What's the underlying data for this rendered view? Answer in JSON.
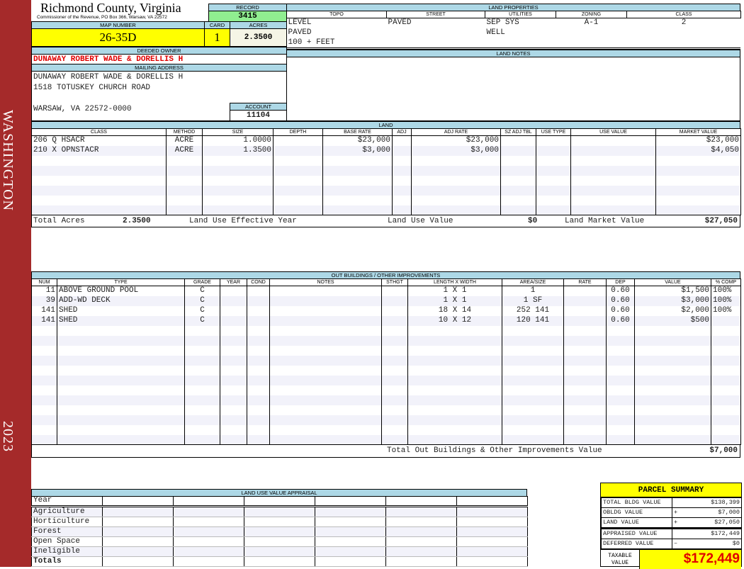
{
  "sidebar": {
    "district": "WASHINGTON",
    "year": "2023"
  },
  "header": {
    "title": "Richmond County, Virginia",
    "subtitle": "Commissioner of the Revenue, PO Box 366, Warsaw, VA 22572",
    "record_label": "RECORD",
    "record": "3415",
    "map_label": "MAP NUMBER",
    "map_number": "26-35D",
    "card_label": "CARD",
    "card": "1",
    "acres_label": "ACRES",
    "acres": "2.3500"
  },
  "owner": {
    "label": "DEEDED OWNER",
    "name": "DUNAWAY ROBERT WADE & DORELLIS H",
    "mail_label": "MAILING ADDRESS",
    "line1": "DUNAWAY ROBERT WADE & DORELLIS H",
    "line2": "1518 TOTUSKEY CHURCH ROAD",
    "line3": "WARSAW, VA 22572-0000",
    "account_label": "ACCOUNT",
    "account": "11104"
  },
  "land_properties": {
    "title": "LAND PROPERTIES",
    "columns": [
      "TOPO",
      "STREET",
      "UTILITIES",
      "ZONING",
      "CLASS"
    ],
    "topo": [
      "LEVEL",
      "PAVED",
      "100 + FEET"
    ],
    "street": [
      "PAVED"
    ],
    "utilities": [
      "SEP SYS",
      "WELL"
    ],
    "zoning": [
      "A-1"
    ],
    "class": [
      "2"
    ]
  },
  "land_notes": {
    "title": "LAND NOTES"
  },
  "land": {
    "title": "LAND",
    "columns": [
      "CLASS",
      "METHOD",
      "SIZE",
      "DEPTH",
      "BASE RATE",
      "ADJ",
      "ADJ RATE",
      "SZ ADJ TBL",
      "USE TYPE",
      "USE VALUE",
      "MARKET VALUE"
    ],
    "rows": [
      [
        "206 Q HSACR",
        "ACRE",
        "1.0000",
        "",
        "$23,000",
        "",
        "$23,000",
        "",
        "",
        "",
        "$23,000"
      ],
      [
        "210 X OPNSTACR",
        "ACRE",
        "1.3500",
        "",
        "$3,000",
        "",
        "$3,000",
        "",
        "",
        "",
        "$4,050"
      ]
    ],
    "totals": {
      "acres_label": "Total Acres",
      "acres": "2.3500",
      "eff_year_label": "Land Use Effective Year",
      "use_value_label": "Land Use Value",
      "use_value": "$0",
      "market_label": "Land Market Value",
      "market": "$27,050"
    }
  },
  "outbuildings": {
    "title": "OUT BUILDINGS / OTHER IMPROVEMENTS",
    "columns": [
      "NUM",
      "TYPE",
      "GRADE",
      "YEAR",
      "COND",
      "NOTES",
      "STHGT",
      "LENGTH X WIDTH",
      "AREA/SIZE",
      "RATE",
      "DEP",
      "VALUE",
      "% COMP"
    ],
    "rows": [
      [
        "11",
        "ABOVE GROUND POOL",
        "C",
        "",
        "",
        "",
        "",
        "1 X 1",
        "1",
        "",
        "0.60",
        "$1,500",
        "100%"
      ],
      [
        "39",
        "ADD-WD DECK",
        "C",
        "",
        "",
        "",
        "",
        "1 X 1",
        "1 SF",
        "",
        "0.60",
        "$3,000",
        "100%"
      ],
      [
        "141",
        "SHED",
        "C",
        "",
        "",
        "",
        "",
        "18 X 14",
        "252 141",
        "",
        "0.60",
        "$2,000",
        "100%"
      ],
      [
        "141",
        "SHED",
        "C",
        "",
        "",
        "",
        "",
        "10 X 12",
        "120 141",
        "",
        "0.60",
        "$500",
        ""
      ]
    ],
    "total_label": "Total Out Buildings & Other Improvements Value",
    "total": "$7,000"
  },
  "land_use_appraisal": {
    "title": "LAND USE VALUE APPRAISAL",
    "year_label": "Year",
    "rows": [
      "Agriculture",
      "Horticulture",
      "Forest",
      "Open Space",
      "Ineligible"
    ],
    "totals_label": "Totals"
  },
  "parcel_summary": {
    "title": "PARCEL SUMMARY",
    "rows": [
      {
        "label": "TOTAL BLDG VALUE",
        "op": "",
        "value": "$138,399"
      },
      {
        "label": "OBLDG VALUE",
        "op": "+",
        "value": "$7,000"
      },
      {
        "label": "LAND VALUE",
        "op": "+",
        "value": "$27,050"
      },
      {
        "label": "APPRAISED VALUE",
        "op": "",
        "value": "$172,449"
      },
      {
        "label": "DEFERRED VALUE",
        "op": "–",
        "value": "$0"
      }
    ],
    "taxable_label": "TAXABLE VALUE",
    "taxable": "$172,449"
  },
  "colors": {
    "sidebar": "#a52a2a",
    "header": "#add8e6",
    "highlight": "#ffff00",
    "record": "#90ee90",
    "owner": "#e00000"
  }
}
